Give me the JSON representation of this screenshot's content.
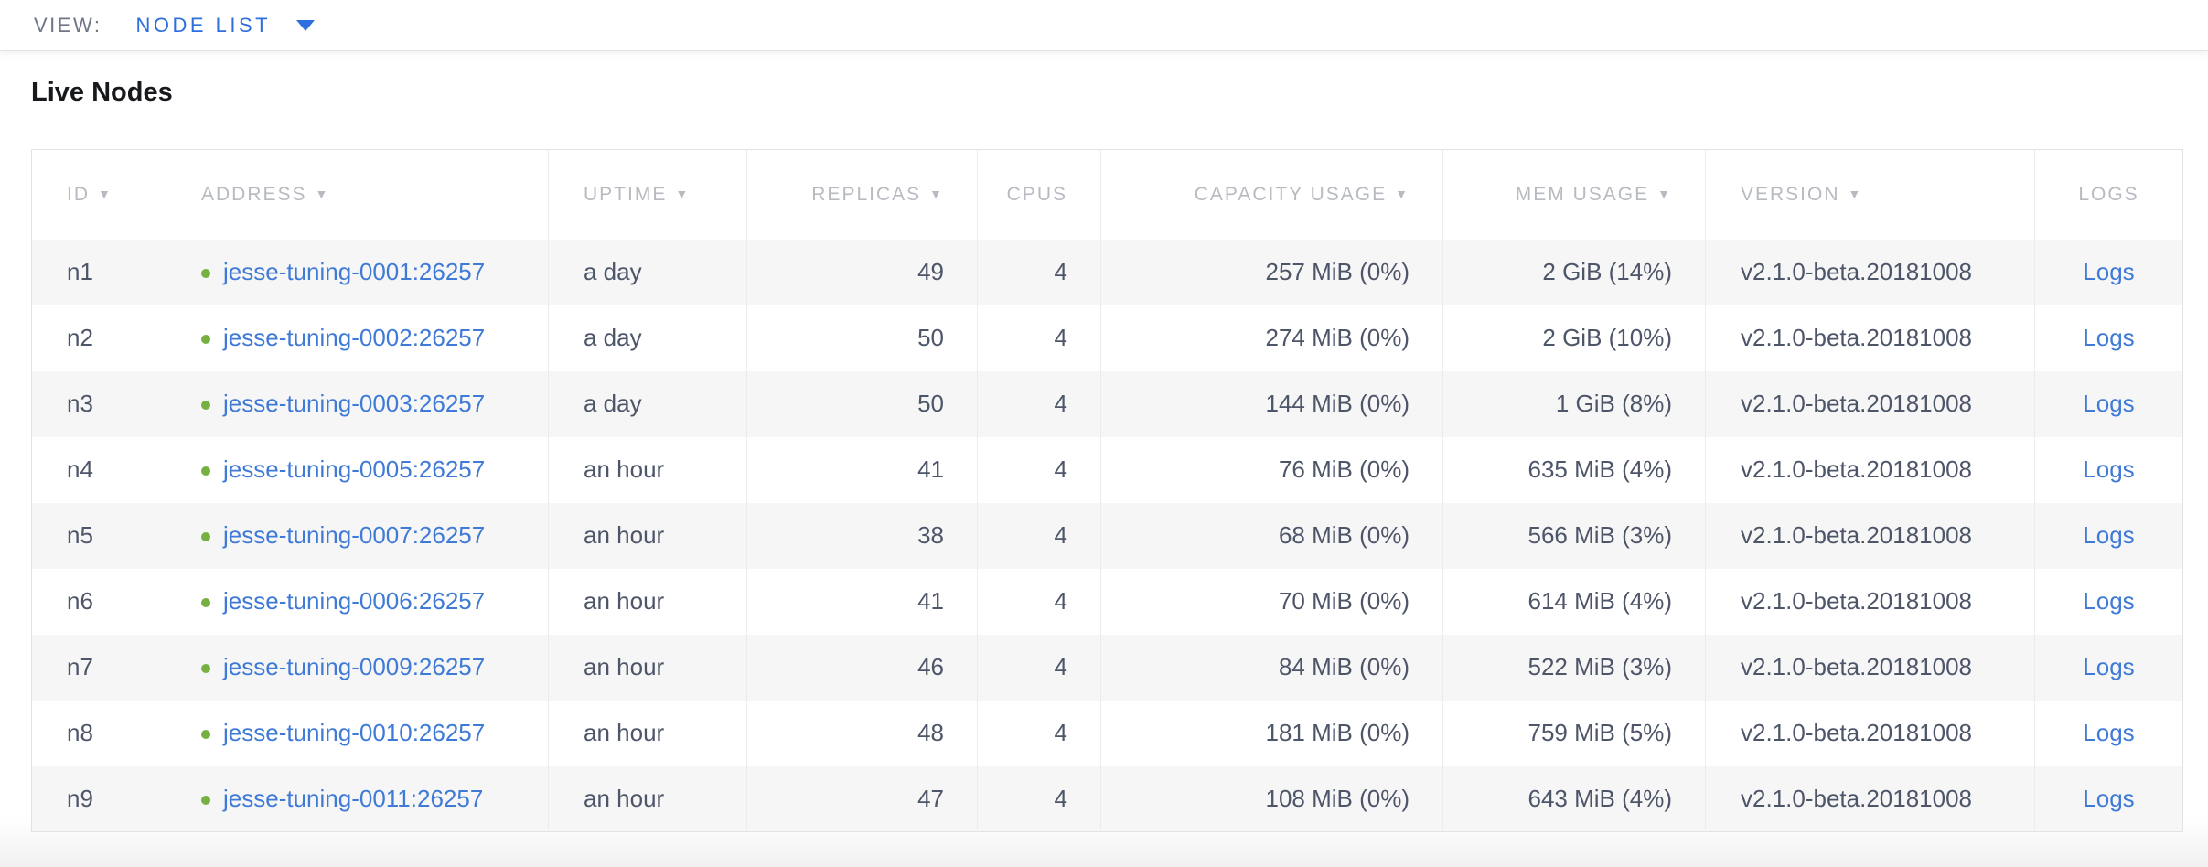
{
  "view_bar": {
    "label": "VIEW:",
    "selected": "NODE LIST"
  },
  "page": {
    "title": "Live Nodes"
  },
  "colors": {
    "link_blue": "#3f7ad6",
    "accent_blue": "#2f6edd",
    "live_green": "#76b042",
    "header_gray": "#b7bac0",
    "body_text": "#4d5568",
    "row_stripe": "#f6f6f7"
  },
  "table": {
    "columns": [
      {
        "key": "id",
        "label": "ID",
        "sortable": true,
        "align": "left"
      },
      {
        "key": "address",
        "label": "ADDRESS",
        "sortable": true,
        "align": "left"
      },
      {
        "key": "uptime",
        "label": "UPTIME",
        "sortable": true,
        "align": "left"
      },
      {
        "key": "replicas",
        "label": "REPLICAS",
        "sortable": true,
        "align": "right"
      },
      {
        "key": "cpus",
        "label": "CPUS",
        "sortable": false,
        "align": "right"
      },
      {
        "key": "capacity",
        "label": "CAPACITY USAGE",
        "sortable": true,
        "align": "right"
      },
      {
        "key": "mem",
        "label": "MEM USAGE",
        "sortable": true,
        "align": "right"
      },
      {
        "key": "version",
        "label": "VERSION",
        "sortable": true,
        "align": "left"
      },
      {
        "key": "logs",
        "label": "LOGS",
        "sortable": false,
        "align": "center"
      }
    ],
    "rows": [
      {
        "id": "n1",
        "status": "live",
        "address": "jesse-tuning-0001:26257",
        "uptime": "a day",
        "replicas": "49",
        "cpus": "4",
        "capacity": "257 MiB (0%)",
        "mem": "2 GiB (14%)",
        "version": "v2.1.0-beta.20181008",
        "logs": "Logs"
      },
      {
        "id": "n2",
        "status": "live",
        "address": "jesse-tuning-0002:26257",
        "uptime": "a day",
        "replicas": "50",
        "cpus": "4",
        "capacity": "274 MiB (0%)",
        "mem": "2 GiB (10%)",
        "version": "v2.1.0-beta.20181008",
        "logs": "Logs"
      },
      {
        "id": "n3",
        "status": "live",
        "address": "jesse-tuning-0003:26257",
        "uptime": "a day",
        "replicas": "50",
        "cpus": "4",
        "capacity": "144 MiB (0%)",
        "mem": "1 GiB (8%)",
        "version": "v2.1.0-beta.20181008",
        "logs": "Logs"
      },
      {
        "id": "n4",
        "status": "live",
        "address": "jesse-tuning-0005:26257",
        "uptime": "an hour",
        "replicas": "41",
        "cpus": "4",
        "capacity": "76 MiB (0%)",
        "mem": "635 MiB (4%)",
        "version": "v2.1.0-beta.20181008",
        "logs": "Logs"
      },
      {
        "id": "n5",
        "status": "live",
        "address": "jesse-tuning-0007:26257",
        "uptime": "an hour",
        "replicas": "38",
        "cpus": "4",
        "capacity": "68 MiB (0%)",
        "mem": "566 MiB (3%)",
        "version": "v2.1.0-beta.20181008",
        "logs": "Logs"
      },
      {
        "id": "n6",
        "status": "live",
        "address": "jesse-tuning-0006:26257",
        "uptime": "an hour",
        "replicas": "41",
        "cpus": "4",
        "capacity": "70 MiB (0%)",
        "mem": "614 MiB (4%)",
        "version": "v2.1.0-beta.20181008",
        "logs": "Logs"
      },
      {
        "id": "n7",
        "status": "live",
        "address": "jesse-tuning-0009:26257",
        "uptime": "an hour",
        "replicas": "46",
        "cpus": "4",
        "capacity": "84 MiB (0%)",
        "mem": "522 MiB (3%)",
        "version": "v2.1.0-beta.20181008",
        "logs": "Logs"
      },
      {
        "id": "n8",
        "status": "live",
        "address": "jesse-tuning-0010:26257",
        "uptime": "an hour",
        "replicas": "48",
        "cpus": "4",
        "capacity": "181 MiB (0%)",
        "mem": "759 MiB (5%)",
        "version": "v2.1.0-beta.20181008",
        "logs": "Logs"
      },
      {
        "id": "n9",
        "status": "live",
        "address": "jesse-tuning-0011:26257",
        "uptime": "an hour",
        "replicas": "47",
        "cpus": "4",
        "capacity": "108 MiB (0%)",
        "mem": "643 MiB (4%)",
        "version": "v2.1.0-beta.20181008",
        "logs": "Logs"
      }
    ]
  }
}
